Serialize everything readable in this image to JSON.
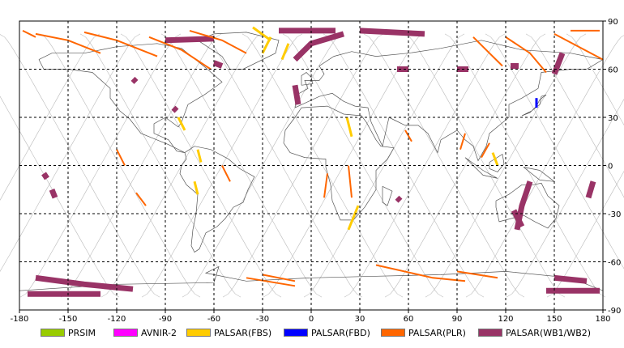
{
  "map": {
    "lon_range": [
      -180,
      180
    ],
    "lat_range": [
      -90,
      90
    ],
    "x_ticks": [
      -180,
      -150,
      -120,
      -90,
      -60,
      -30,
      0,
      30,
      60,
      90,
      120,
      150,
      180
    ],
    "y_ticks": [
      90,
      60,
      30,
      0,
      -30,
      -60,
      -90
    ],
    "grid": "dashed"
  },
  "legend": [
    {
      "label": "PRSIM",
      "color": "#99cc00"
    },
    {
      "label": "AVNIR-2",
      "color": "#ff00ff"
    },
    {
      "label": "PALSAR(FBS)",
      "color": "#ffcc00"
    },
    {
      "label": "PALSAR(FBD)",
      "color": "#0000ff"
    },
    {
      "label": "PALSAR(PLR)",
      "color": "#ff6600"
    },
    {
      "label": "PALSAR(WB1/WB2)",
      "color": "#993366"
    }
  ],
  "colors": {
    "orbit_track": "#bbbbbb",
    "coastline": "#555555",
    "frame": "#000000"
  }
}
